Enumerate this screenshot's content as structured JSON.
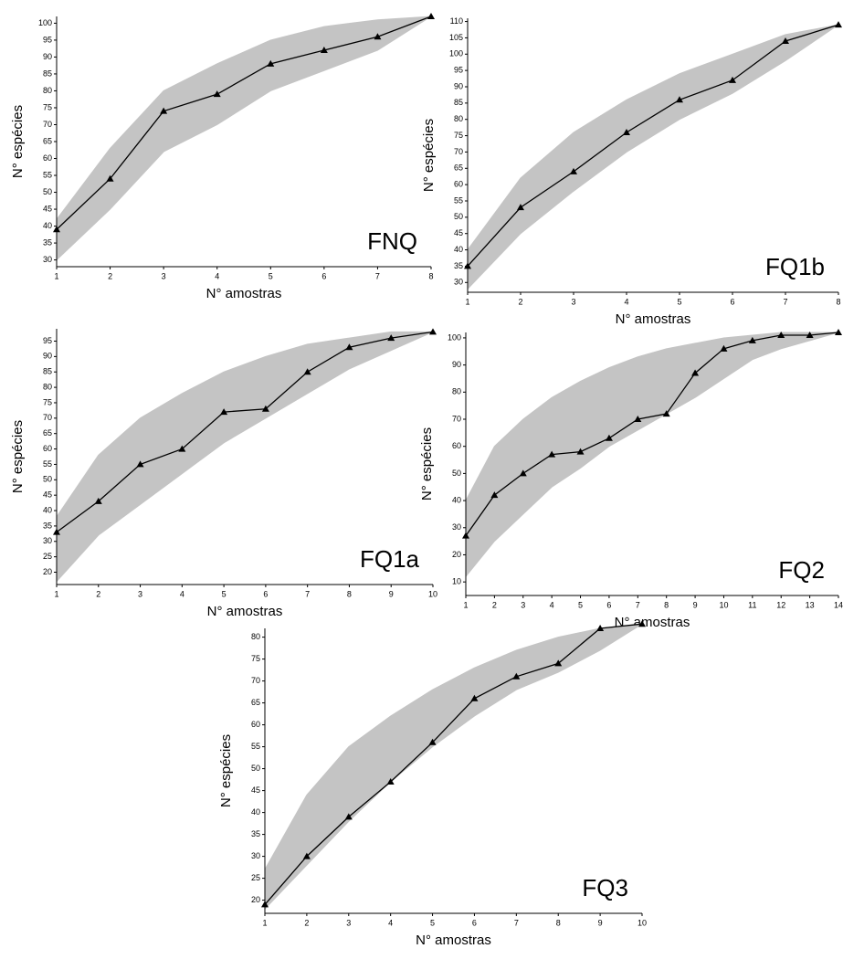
{
  "chart_data": [
    {
      "type": "line",
      "annotation": "FNQ",
      "xlabel": "N° amostras",
      "ylabel": "N° espécies",
      "x": [
        1,
        2,
        3,
        4,
        5,
        6,
        7,
        8
      ],
      "values": [
        39,
        54,
        74,
        79,
        88,
        92,
        96,
        102
      ],
      "envelope": {
        "lower": [
          30,
          45,
          62,
          70,
          80,
          86,
          92,
          102
        ],
        "upper": [
          42,
          63,
          80,
          88,
          95,
          99,
          101,
          102
        ]
      },
      "xlim": [
        1,
        8
      ],
      "ylim": [
        28,
        102
      ],
      "xticks": [
        1,
        2,
        3,
        4,
        5,
        6,
        7,
        8
      ],
      "yticks": [
        30,
        35,
        40,
        45,
        50,
        55,
        60,
        65,
        70,
        75,
        80,
        85,
        90,
        95,
        100
      ],
      "color": "#000000",
      "band_color": "#c4c4c4"
    },
    {
      "type": "line",
      "annotation": "FQ1b",
      "xlabel": "N° amostras",
      "ylabel": "N° espécies",
      "x": [
        1,
        2,
        3,
        4,
        5,
        6,
        7,
        8
      ],
      "values": [
        35,
        53,
        64,
        76,
        86,
        92,
        104,
        109
      ],
      "envelope": {
        "lower": [
          28,
          45,
          58,
          70,
          80,
          88,
          98,
          109
        ],
        "upper": [
          40,
          62,
          76,
          86,
          94,
          100,
          106,
          109
        ]
      },
      "xlim": [
        1,
        8
      ],
      "ylim": [
        27,
        111
      ],
      "xticks": [
        1,
        2,
        3,
        4,
        5,
        6,
        7,
        8
      ],
      "yticks": [
        30,
        35,
        40,
        45,
        50,
        55,
        60,
        65,
        70,
        75,
        80,
        85,
        90,
        95,
        100,
        105,
        110
      ],
      "color": "#000000",
      "band_color": "#c4c4c4"
    },
    {
      "type": "line",
      "annotation": "FQ1a",
      "xlabel": "N° amostras",
      "ylabel": "N° espécies",
      "x": [
        1,
        2,
        3,
        4,
        5,
        6,
        7,
        8,
        9,
        10
      ],
      "values": [
        33,
        43,
        55,
        60,
        72,
        73,
        85,
        93,
        96,
        98
      ],
      "envelope": {
        "lower": [
          17,
          32,
          42,
          52,
          62,
          70,
          78,
          86,
          92,
          98
        ],
        "upper": [
          38,
          58,
          70,
          78,
          85,
          90,
          94,
          96,
          98,
          98
        ]
      },
      "xlim": [
        1,
        10
      ],
      "ylim": [
        16,
        99
      ],
      "xticks": [
        1,
        2,
        3,
        4,
        5,
        6,
        7,
        8,
        9,
        10
      ],
      "yticks": [
        20,
        25,
        30,
        35,
        40,
        45,
        50,
        55,
        60,
        65,
        70,
        75,
        80,
        85,
        90,
        95
      ],
      "color": "#000000",
      "band_color": "#c4c4c4"
    },
    {
      "type": "line",
      "annotation": "FQ2",
      "xlabel": "N° amostras",
      "ylabel": "N° espécies",
      "x": [
        1,
        2,
        3,
        4,
        5,
        6,
        7,
        8,
        9,
        10,
        11,
        12,
        13,
        14
      ],
      "values": [
        27,
        42,
        50,
        57,
        58,
        63,
        70,
        72,
        87,
        96,
        99,
        101,
        101,
        102
      ],
      "envelope": {
        "lower": [
          12,
          25,
          35,
          45,
          52,
          60,
          66,
          72,
          78,
          85,
          92,
          96,
          99,
          102
        ],
        "upper": [
          40,
          60,
          70,
          78,
          84,
          89,
          93,
          96,
          98,
          100,
          101,
          102,
          102,
          102
        ]
      },
      "xlim": [
        1,
        14
      ],
      "ylim": [
        5,
        102
      ],
      "xticks": [
        1,
        2,
        3,
        4,
        5,
        6,
        7,
        8,
        9,
        10,
        11,
        12,
        13,
        14
      ],
      "yticks": [
        10,
        20,
        30,
        40,
        50,
        60,
        70,
        80,
        90,
        100
      ],
      "color": "#000000",
      "band_color": "#c4c4c4"
    },
    {
      "type": "line",
      "annotation": "FQ3",
      "xlabel": "N° amostras",
      "ylabel": "N° espécies",
      "x": [
        1,
        2,
        3,
        4,
        5,
        6,
        7,
        8,
        9,
        10
      ],
      "values": [
        19,
        30,
        39,
        47,
        56,
        66,
        71,
        74,
        82,
        83
      ],
      "envelope": {
        "lower": [
          18,
          28,
          38,
          47,
          55,
          62,
          68,
          72,
          77,
          83
        ],
        "upper": [
          27,
          44,
          55,
          62,
          68,
          73,
          77,
          80,
          82,
          83
        ]
      },
      "xlim": [
        1,
        10
      ],
      "ylim": [
        17,
        82
      ],
      "xticks": [
        1,
        2,
        3,
        4,
        5,
        6,
        7,
        8,
        9,
        10
      ],
      "yticks": [
        20,
        25,
        30,
        35,
        40,
        45,
        50,
        55,
        60,
        65,
        70,
        75,
        80
      ],
      "color": "#000000",
      "band_color": "#c4c4c4"
    }
  ]
}
